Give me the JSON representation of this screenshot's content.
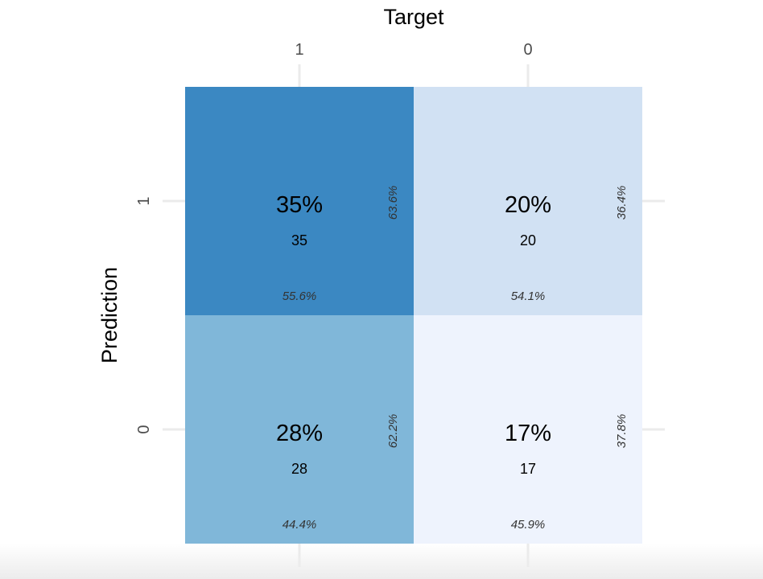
{
  "chart_data": {
    "type": "heatmap",
    "title": "",
    "xlabel": "Target",
    "ylabel": "Prediction",
    "x_categories": [
      "1",
      "0"
    ],
    "y_categories": [
      "1",
      "0"
    ],
    "colors": {
      "grid": "#ebebeb",
      "low": "#eef3fd",
      "high": "#3b88c2"
    },
    "cells": [
      {
        "target": "1",
        "prediction": "1",
        "count": "35",
        "percent": "35%",
        "col_pct": "55.6%",
        "row_pct": "63.6%",
        "fill": "#3b88c2"
      },
      {
        "target": "0",
        "prediction": "1",
        "count": "20",
        "percent": "20%",
        "col_pct": "54.1%",
        "row_pct": "36.4%",
        "fill": "#d1e1f3"
      },
      {
        "target": "1",
        "prediction": "0",
        "count": "28",
        "percent": "28%",
        "col_pct": "44.4%",
        "row_pct": "62.2%",
        "fill": "#80b7d9"
      },
      {
        "target": "0",
        "prediction": "0",
        "count": "17",
        "percent": "17%",
        "col_pct": "45.9%",
        "row_pct": "37.8%",
        "fill": "#eef3fd"
      }
    ]
  }
}
